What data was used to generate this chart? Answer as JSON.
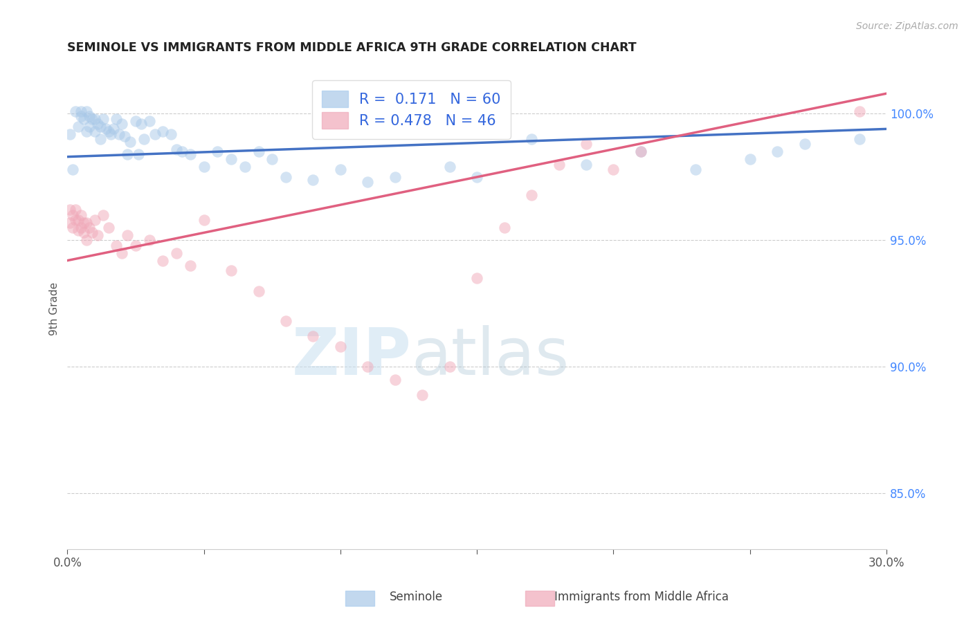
{
  "title": "SEMINOLE VS IMMIGRANTS FROM MIDDLE AFRICA 9TH GRADE CORRELATION CHART",
  "source": "Source: ZipAtlas.com",
  "xlabel_seminole": "Seminole",
  "xlabel_immigrants": "Immigrants from Middle Africa",
  "ylabel": "9th Grade",
  "xlim": [
    0.0,
    0.3
  ],
  "ylim": [
    0.828,
    1.018
  ],
  "xticks": [
    0.0,
    0.05,
    0.1,
    0.15,
    0.2,
    0.25,
    0.3
  ],
  "xticklabels": [
    "0.0%",
    "",
    "",
    "",
    "",
    "",
    "30.0%"
  ],
  "yticks_right": [
    0.85,
    0.9,
    0.95,
    1.0
  ],
  "ytick_labels_right": [
    "85.0%",
    "90.0%",
    "95.0%",
    "100.0%"
  ],
  "blue_color": "#a8c8e8",
  "pink_color": "#f0a8b8",
  "blue_line_color": "#4472c4",
  "pink_line_color": "#e06080",
  "legend_blue_R": "0.171",
  "legend_blue_N": "60",
  "legend_pink_R": "0.478",
  "legend_pink_N": "46",
  "watermark_zip": "ZIP",
  "watermark_atlas": "atlas",
  "grid_color": "#cccccc",
  "background_color": "#ffffff",
  "blue_scatter": [
    [
      0.001,
      0.992
    ],
    [
      0.002,
      0.978
    ],
    [
      0.003,
      1.001
    ],
    [
      0.004,
      0.995
    ],
    [
      0.005,
      0.999
    ],
    [
      0.005,
      1.001
    ],
    [
      0.006,
      0.998
    ],
    [
      0.007,
      0.993
    ],
    [
      0.007,
      1.001
    ],
    [
      0.008,
      0.995
    ],
    [
      0.008,
      0.999
    ],
    [
      0.009,
      0.998
    ],
    [
      0.01,
      0.998
    ],
    [
      0.01,
      0.993
    ],
    [
      0.011,
      0.996
    ],
    [
      0.012,
      0.995
    ],
    [
      0.012,
      0.99
    ],
    [
      0.013,
      0.998
    ],
    [
      0.014,
      0.994
    ],
    [
      0.015,
      0.993
    ],
    [
      0.016,
      0.992
    ],
    [
      0.017,
      0.994
    ],
    [
      0.018,
      0.998
    ],
    [
      0.019,
      0.992
    ],
    [
      0.02,
      0.996
    ],
    [
      0.021,
      0.991
    ],
    [
      0.022,
      0.984
    ],
    [
      0.023,
      0.989
    ],
    [
      0.025,
      0.997
    ],
    [
      0.026,
      0.984
    ],
    [
      0.027,
      0.996
    ],
    [
      0.028,
      0.99
    ],
    [
      0.03,
      0.997
    ],
    [
      0.032,
      0.992
    ],
    [
      0.035,
      0.993
    ],
    [
      0.038,
      0.992
    ],
    [
      0.04,
      0.986
    ],
    [
      0.042,
      0.985
    ],
    [
      0.045,
      0.984
    ],
    [
      0.05,
      0.979
    ],
    [
      0.055,
      0.985
    ],
    [
      0.06,
      0.982
    ],
    [
      0.065,
      0.979
    ],
    [
      0.07,
      0.985
    ],
    [
      0.075,
      0.982
    ],
    [
      0.08,
      0.975
    ],
    [
      0.09,
      0.974
    ],
    [
      0.1,
      0.978
    ],
    [
      0.11,
      0.973
    ],
    [
      0.12,
      0.975
    ],
    [
      0.14,
      0.979
    ],
    [
      0.15,
      0.975
    ],
    [
      0.17,
      0.99
    ],
    [
      0.19,
      0.98
    ],
    [
      0.21,
      0.985
    ],
    [
      0.23,
      0.978
    ],
    [
      0.25,
      0.982
    ],
    [
      0.26,
      0.985
    ],
    [
      0.27,
      0.988
    ],
    [
      0.29,
      0.99
    ]
  ],
  "pink_scatter": [
    [
      0.001,
      0.962
    ],
    [
      0.001,
      0.957
    ],
    [
      0.002,
      0.96
    ],
    [
      0.002,
      0.955
    ],
    [
      0.003,
      0.962
    ],
    [
      0.003,
      0.958
    ],
    [
      0.004,
      0.958
    ],
    [
      0.004,
      0.954
    ],
    [
      0.005,
      0.96
    ],
    [
      0.005,
      0.955
    ],
    [
      0.006,
      0.957
    ],
    [
      0.006,
      0.953
    ],
    [
      0.007,
      0.957
    ],
    [
      0.007,
      0.95
    ],
    [
      0.008,
      0.955
    ],
    [
      0.009,
      0.953
    ],
    [
      0.01,
      0.958
    ],
    [
      0.011,
      0.952
    ],
    [
      0.013,
      0.96
    ],
    [
      0.015,
      0.955
    ],
    [
      0.018,
      0.948
    ],
    [
      0.02,
      0.945
    ],
    [
      0.022,
      0.952
    ],
    [
      0.025,
      0.948
    ],
    [
      0.03,
      0.95
    ],
    [
      0.035,
      0.942
    ],
    [
      0.04,
      0.945
    ],
    [
      0.045,
      0.94
    ],
    [
      0.05,
      0.958
    ],
    [
      0.06,
      0.938
    ],
    [
      0.07,
      0.93
    ],
    [
      0.08,
      0.918
    ],
    [
      0.09,
      0.912
    ],
    [
      0.1,
      0.908
    ],
    [
      0.11,
      0.9
    ],
    [
      0.12,
      0.895
    ],
    [
      0.13,
      0.889
    ],
    [
      0.14,
      0.9
    ],
    [
      0.15,
      0.935
    ],
    [
      0.16,
      0.955
    ],
    [
      0.17,
      0.968
    ],
    [
      0.18,
      0.98
    ],
    [
      0.19,
      0.988
    ],
    [
      0.2,
      0.978
    ],
    [
      0.21,
      0.985
    ],
    [
      0.29,
      1.001
    ]
  ],
  "blue_line_x": [
    0.0,
    0.3
  ],
  "blue_line_y": [
    0.983,
    0.994
  ],
  "pink_line_x": [
    0.0,
    0.3
  ],
  "pink_line_y": [
    0.942,
    1.008
  ]
}
